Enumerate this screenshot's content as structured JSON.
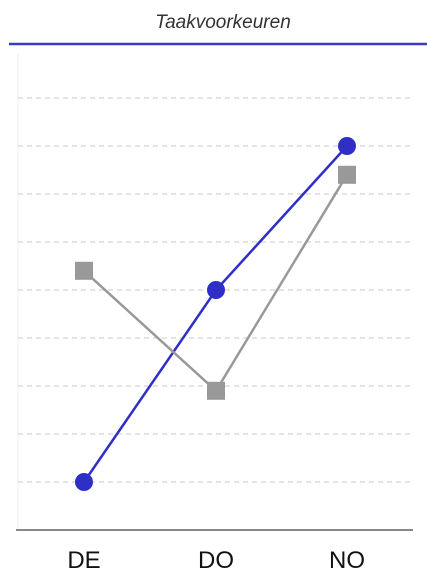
{
  "chart_data": {
    "type": "line",
    "title": "Taakvoorkeuren",
    "xlabel": "",
    "ylabel": "",
    "categories": [
      "DE",
      "DO",
      "NO"
    ],
    "ylim": [
      0,
      10
    ],
    "grid": true,
    "y_gridlines": [
      1,
      2,
      3,
      4,
      5,
      6,
      7,
      8,
      9
    ],
    "series": [
      {
        "values": [
          1.0,
          5.0,
          8.0
        ],
        "marker": "circle",
        "color": "#2f2fc8"
      },
      {
        "values": [
          5.4,
          2.9,
          7.4
        ],
        "marker": "square",
        "color": "#999999"
      }
    ],
    "colors": {
      "title_rule": "#3a3ac0",
      "gridline": "#c8c8c8",
      "axis": "#888888"
    }
  }
}
